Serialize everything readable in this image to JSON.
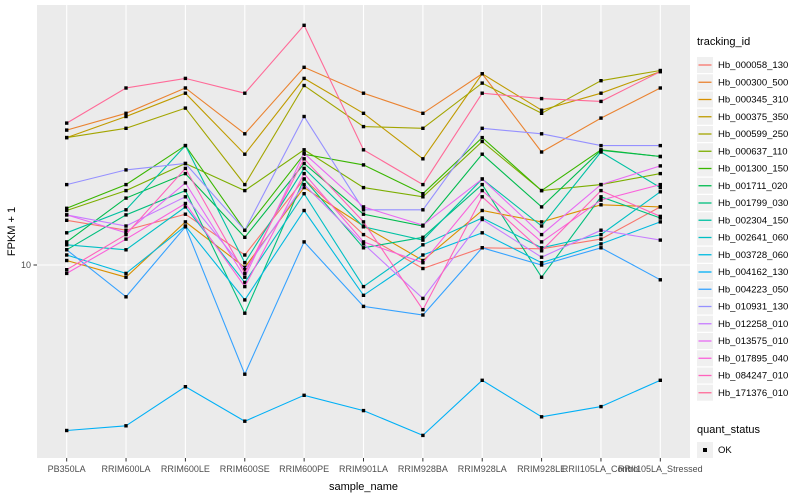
{
  "chart_data": {
    "type": "line",
    "title": "",
    "xlabel": "sample_name",
    "ylabel": "FPKM + 1",
    "y_scale": "log10",
    "y_tick_labels": [
      "10"
    ],
    "y_tick_values": [
      10
    ],
    "grid": "major-only",
    "panel_bg": "#EBEBEB",
    "gridline_color": "#FFFFFF",
    "point_color": "#000000",
    "point_shape": "filled-square",
    "axis_text_color": "#4D4D4D",
    "categories": [
      "PB350LA",
      "RRIM600LA",
      "RRIM600LE",
      "RRIM600SE",
      "RRIM600PE",
      "RRIM901LA",
      "RRIM928BA",
      "RRIM928LA",
      "RRIM928LE",
      "RRII105LA_Control",
      "RRII105LA_Stressed"
    ],
    "series": [
      {
        "name": "Hb_000058_130",
        "color": "#F8766D",
        "values": [
          14.7,
          13.5,
          15.5,
          10.9,
          21,
          13,
          9.7,
          11.6,
          11.5,
          12.5,
          16.5
        ]
      },
      {
        "name": "Hb_000300_500",
        "color": "#EA8331",
        "values": [
          32,
          37,
          46,
          31,
          55,
          44,
          37,
          52,
          26.5,
          35.5,
          46
        ]
      },
      {
        "name": "Hb_000345_310",
        "color": "#D89000",
        "values": [
          10.4,
          9,
          14.5,
          9.8,
          19.5,
          14,
          10.4,
          16,
          14.5,
          16.8,
          16.5
        ]
      },
      {
        "name": "Hb_000375_350",
        "color": "#C09B00",
        "values": [
          30,
          36,
          44,
          26,
          50,
          37,
          25,
          52,
          38,
          44,
          53
        ]
      },
      {
        "name": "Hb_000599_250",
        "color": "#A3A500",
        "values": [
          30,
          32.5,
          38.7,
          20,
          47,
          33,
          32.5,
          48,
          37,
          49,
          53.5
        ]
      },
      {
        "name": "Hb_000637_110",
        "color": "#7CAE00",
        "values": [
          16,
          19,
          24,
          19,
          27,
          19.5,
          18,
          29,
          19,
          20,
          22
        ]
      },
      {
        "name": "Hb_001300_150",
        "color": "#39B600",
        "values": [
          16.3,
          20,
          28,
          13.5,
          26,
          23.7,
          18.5,
          30,
          19,
          27,
          25.5
        ]
      },
      {
        "name": "Hb_001711_020",
        "color": "#00BB4E",
        "values": [
          12.2,
          17.8,
          22,
          12.7,
          24,
          15.5,
          14,
          26,
          16.5,
          26.9,
          25.5
        ]
      },
      {
        "name": "Hb_001799_030",
        "color": "#00BF7D",
        "values": [
          11.4,
          15.4,
          19,
          6.6,
          21,
          11.6,
          12.7,
          20,
          9,
          18,
          15
        ]
      },
      {
        "name": "Hb_002304_150",
        "color": "#00C1A3",
        "values": [
          13.2,
          16.1,
          28,
          10.2,
          23,
          13.9,
          12.4,
          21,
          14,
          26.5,
          19.5
        ]
      },
      {
        "name": "Hb_002641_060",
        "color": "#00BFC4",
        "values": [
          11.9,
          11.4,
          16.5,
          8.6,
          18.5,
          8.3,
          11.9,
          15,
          11.6,
          13,
          18.8
        ]
      },
      {
        "name": "Hb_003728_060",
        "color": "#00BAE0",
        "values": [
          10.9,
          9.3,
          14,
          7.4,
          16,
          7.7,
          10.9,
          13.2,
          10.2,
          12,
          14.5
        ]
      },
      {
        "name": "Hb_004162_130",
        "color": "#00B0F6",
        "values": [
          2.4,
          2.5,
          3.5,
          2.6,
          3.25,
          2.85,
          2.3,
          3.7,
          2.7,
          2.95,
          3.7
        ]
      },
      {
        "name": "Hb_004223_050",
        "color": "#35A2FF",
        "values": [
          11.4,
          7.6,
          13.9,
          3.9,
          12.2,
          7,
          6.5,
          11.6,
          10,
          11.6,
          8.8
        ]
      },
      {
        "name": "Hb_010931_130",
        "color": "#9590FF",
        "values": [
          20,
          22.7,
          24,
          13.5,
          36,
          16.1,
          16.1,
          32.5,
          31,
          28,
          28
        ]
      },
      {
        "name": "Hb_012258_010",
        "color": "#C77CFF",
        "values": [
          15.4,
          14,
          18,
          9.6,
          20,
          12,
          7.5,
          14.8,
          10.7,
          13.5,
          12.4
        ]
      },
      {
        "name": "Hb_013575_010",
        "color": "#E76BF3",
        "values": [
          15.4,
          13.2,
          20.3,
          9,
          26.2,
          16.5,
          14.1,
          21,
          13,
          20,
          23.5
        ]
      },
      {
        "name": "Hb_017895_040",
        "color": "#FA62DB",
        "values": [
          9.3,
          12.5,
          17,
          8.3,
          22,
          12.2,
          10.2,
          19,
          12.2,
          17.5,
          20
        ]
      },
      {
        "name": "Hb_084247_010",
        "color": "#FF62BC",
        "values": [
          9.6,
          13,
          23,
          9.3,
          25,
          14.5,
          6.8,
          18,
          11.3,
          19,
          15.2
        ]
      },
      {
        "name": "Hb_171376_010",
        "color": "#FF6A98",
        "values": [
          34,
          46,
          50,
          44,
          79,
          27,
          20,
          44,
          42,
          41,
          53
        ]
      }
    ],
    "legend_color": {
      "title": "tracking_id"
    },
    "legend_shape": {
      "title": "quant_status",
      "items": [
        {
          "label": "OK",
          "shape": "filled-square",
          "color": "#000000"
        }
      ]
    },
    "legend_key_bg": "#F0F0F0"
  }
}
